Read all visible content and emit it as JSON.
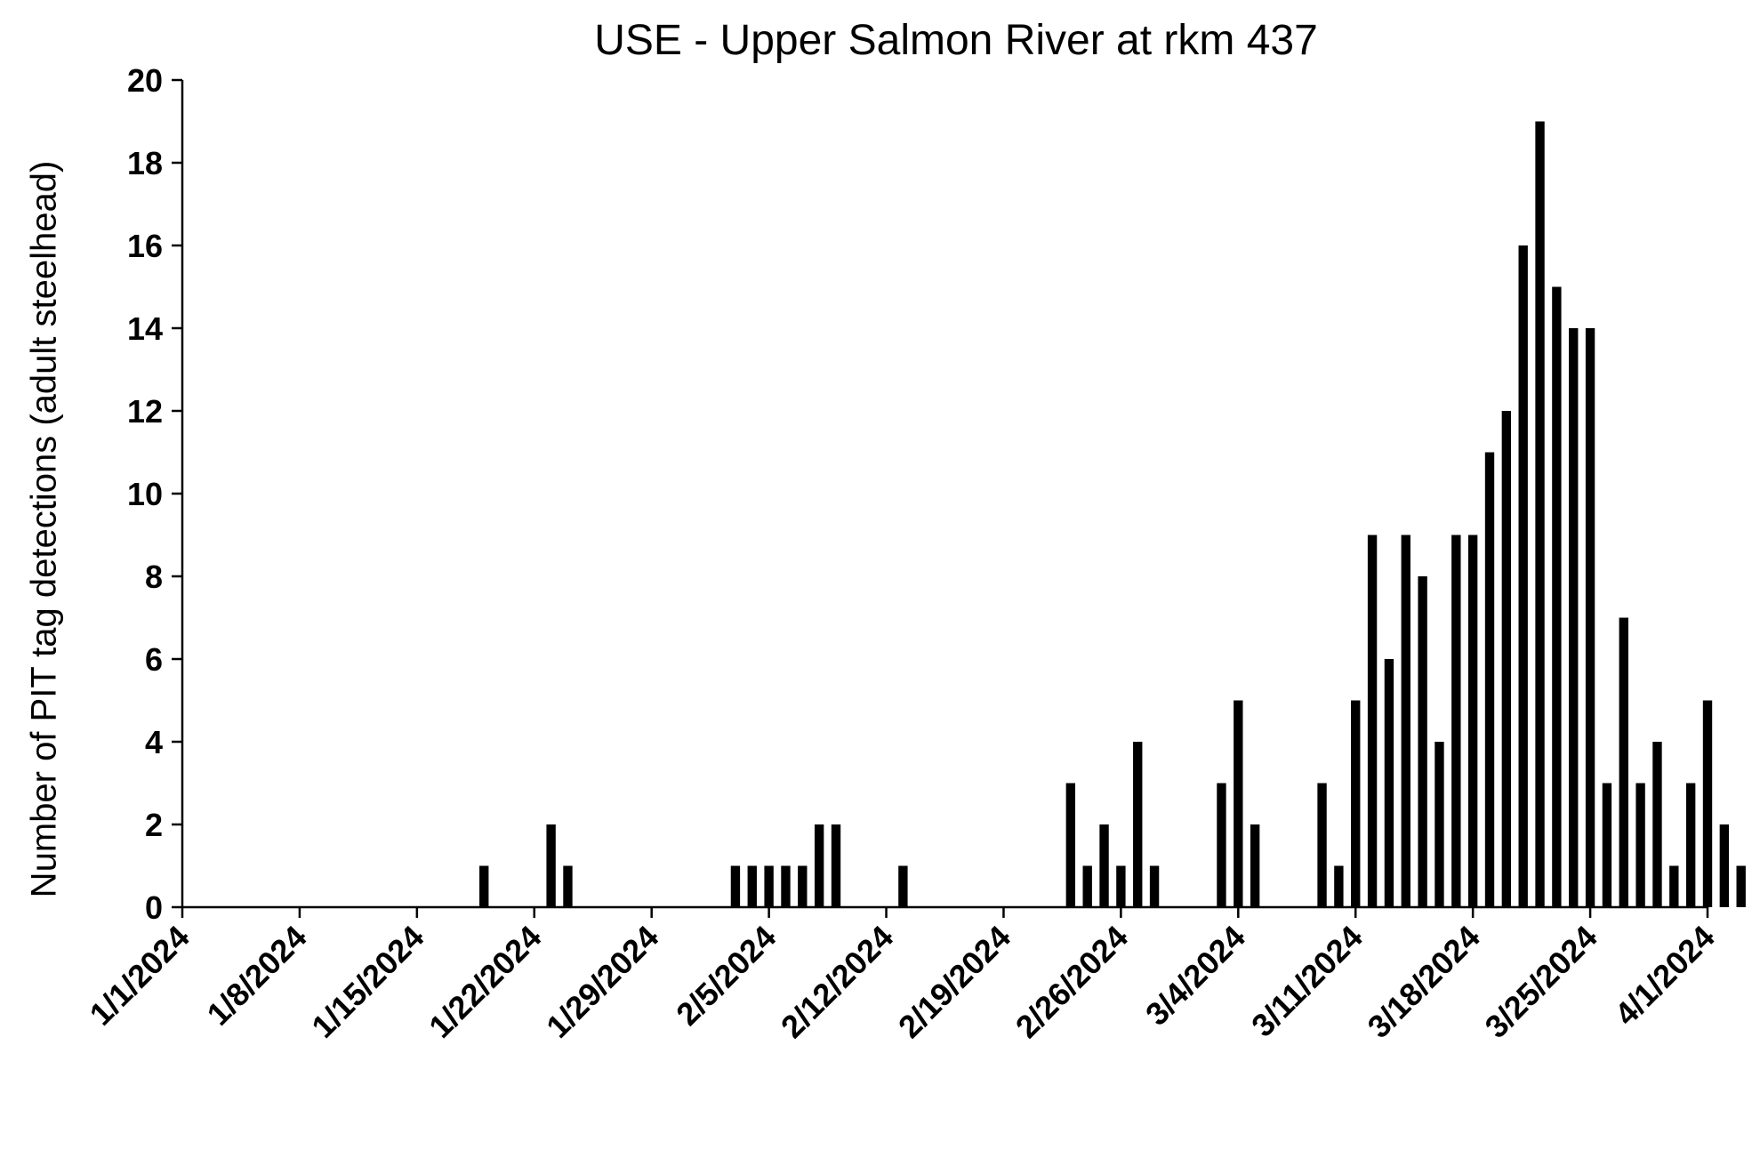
{
  "chart_data": {
    "type": "bar",
    "title": "USE - Upper Salmon River at rkm 437",
    "xlabel": "",
    "ylabel": "Number of PIT tag detections (adult steelhead)",
    "ylim": [
      0,
      20
    ],
    "yticks": [
      0,
      2,
      4,
      6,
      8,
      10,
      12,
      14,
      16,
      18,
      20
    ],
    "xlim": [
      "2024-01-01",
      "2024-04-01"
    ],
    "xtick_labels": [
      "1/1/2024",
      "1/8/2024",
      "1/15/2024",
      "1/22/2024",
      "1/29/2024",
      "2/5/2024",
      "2/12/2024",
      "2/19/2024",
      "2/26/2024",
      "3/4/2024",
      "3/11/2024",
      "3/18/2024",
      "3/25/2024",
      "4/1/2024"
    ],
    "grid": false,
    "legend": "none",
    "bar_color": "#000000",
    "series": [
      {
        "x": [
          "2024-01-19",
          "2024-01-23",
          "2024-01-24",
          "2024-02-03",
          "2024-02-04",
          "2024-02-05",
          "2024-02-06",
          "2024-02-07",
          "2024-02-08",
          "2024-02-09",
          "2024-02-13",
          "2024-02-23",
          "2024-02-24",
          "2024-02-25",
          "2024-02-26",
          "2024-02-27",
          "2024-02-28",
          "2024-03-03",
          "2024-03-04",
          "2024-03-05",
          "2024-03-09",
          "2024-03-10",
          "2024-03-11",
          "2024-03-12",
          "2024-03-13",
          "2024-03-14",
          "2024-03-15",
          "2024-03-16",
          "2024-03-17",
          "2024-03-18",
          "2024-03-19",
          "2024-03-20",
          "2024-03-21",
          "2024-03-22",
          "2024-03-23",
          "2024-03-24",
          "2024-03-25",
          "2024-03-26",
          "2024-03-27",
          "2024-03-28",
          "2024-03-29",
          "2024-03-30",
          "2024-03-31",
          "2024-04-01",
          "2024-04-02",
          "2024-04-03",
          "2024-04-04"
        ],
        "values": [
          1,
          2,
          1,
          1,
          1,
          1,
          1,
          1,
          2,
          2,
          1,
          3,
          1,
          2,
          1,
          4,
          1,
          3,
          5,
          2,
          3,
          1,
          5,
          9,
          6,
          9,
          8,
          4,
          9,
          9,
          11,
          12,
          16,
          19,
          15,
          14,
          14,
          3,
          7,
          3,
          4,
          1,
          3,
          5,
          2,
          1,
          0
        ]
      }
    ]
  }
}
